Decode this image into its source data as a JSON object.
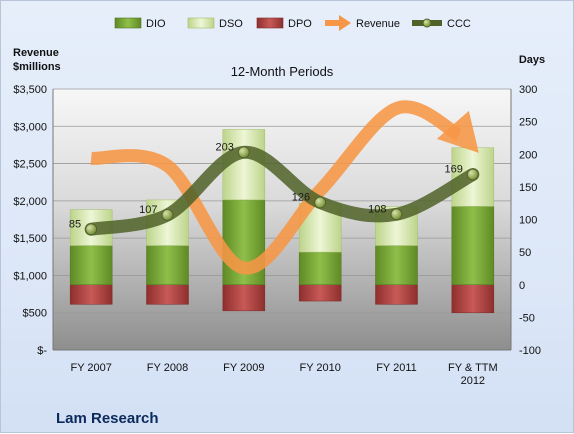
{
  "chart_data": {
    "type": "bar",
    "title": "12-Month Periods",
    "footer": "Lam Research",
    "left_axis_title": [
      "Revenue",
      "$millions"
    ],
    "right_axis_title": "Days",
    "categories": [
      "FY 2007",
      "FY 2008",
      "FY 2009",
      "FY 2010",
      "FY 2011",
      "FY & TTM 2012"
    ],
    "left_ticks": [
      "$-",
      "$500",
      "$1,000",
      "$1,500",
      "$2,000",
      "$2,500",
      "$3,000",
      "$3,500"
    ],
    "left_range": [
      0,
      3500
    ],
    "right_ticks": [
      "-100",
      "-50",
      "0",
      "50",
      "100",
      "150",
      "200",
      "250",
      "300"
    ],
    "right_range": [
      -100,
      300
    ],
    "legend": [
      "DIO",
      "DSO",
      "DPO",
      "Revenue",
      "CCC"
    ],
    "series": [
      {
        "name": "DIO",
        "axis": "right",
        "values": [
          60,
          60,
          130,
          50,
          60,
          120
        ],
        "color": "#77a03a"
      },
      {
        "name": "DSO",
        "axis": "right",
        "values": [
          55,
          70,
          108,
          75,
          60,
          90
        ],
        "color": "#d7e8a5"
      },
      {
        "name": "DPO",
        "axis": "right",
        "values": [
          -30,
          -30,
          -40,
          -25,
          -30,
          -43
        ],
        "color": "#c0504d"
      },
      {
        "name": "Revenue",
        "axis": "left",
        "values": [
          2570,
          2470,
          1100,
          2140,
          3240,
          2670
        ],
        "color": "#f79646"
      },
      {
        "name": "CCC",
        "axis": "right",
        "values": [
          85,
          107,
          203,
          126,
          108,
          169
        ],
        "color": "#4f6228"
      }
    ],
    "data_labels": [
      "85",
      "107",
      "203",
      "126",
      "108",
      "169"
    ]
  }
}
